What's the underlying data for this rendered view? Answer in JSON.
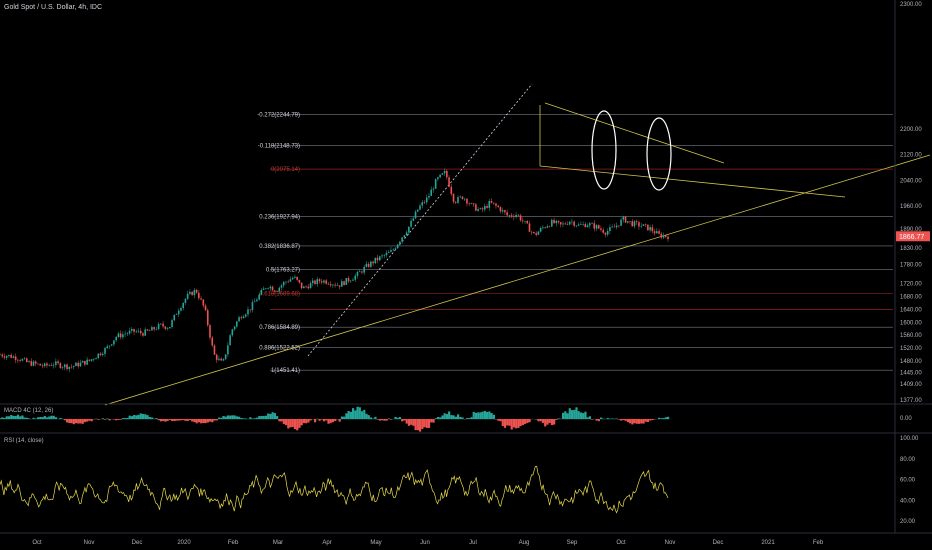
{
  "title": "Gold Spot / U.S. Dollar, 4h, IDC",
  "last_price": "1866.77",
  "price_badge_color": "#ef5350",
  "candle_up_color": "#26a69a",
  "candle_down_color": "#ef5350",
  "trendline_color": "#d4c44a",
  "rsi_color": "#e7d94a",
  "fib_line_color": "#787b86",
  "fib_red_color": "#b22833",
  "macd": {
    "label": "MACD 4C (12, 26)",
    "zero_label": "0.00"
  },
  "rsi": {
    "label": "RSI (14, close)",
    "ticks": [
      "100.00",
      "80.00",
      "60.00",
      "40.00",
      "20.00"
    ]
  },
  "price_axis": {
    "ticks": [
      "2300.00",
      "2200.00",
      "2120.00",
      "2040.00",
      "1960.00",
      "1890.00",
      "1830.00",
      "1780.00",
      "1720.00",
      "1680.00",
      "1640.00",
      "1600.00",
      "1560.00",
      "1520.00",
      "1480.00",
      "1445.00",
      "1409.00",
      "1377.00"
    ]
  },
  "time_axis": {
    "ticks": [
      "Oct",
      "Nov",
      "Dec",
      "2020",
      "Feb",
      "Mar",
      "Apr",
      "May",
      "Jun",
      "Jul",
      "Aug",
      "Sep",
      "Oct",
      "Nov",
      "Dec",
      "2021",
      "Feb"
    ]
  },
  "chart_data": {
    "type": "line",
    "series": [
      {
        "values": [
          1500,
          1496,
          1490,
          1476,
          1470,
          1464,
          1472,
          1466,
          1462,
          1472,
          1480,
          1500,
          1520,
          1555,
          1565,
          1572,
          1566,
          1576,
          1590,
          1585,
          1640,
          1680,
          1700,
          1640,
          1500,
          1470,
          1575,
          1620,
          1640,
          1680,
          1715,
          1700,
          1725,
          1740,
          1705,
          1720,
          1730,
          1725,
          1715,
          1730,
          1745,
          1770,
          1790,
          1805,
          1820,
          1860,
          1900,
          1955,
          1985,
          2040,
          2065,
          1975,
          1990,
          1960,
          1945,
          1970,
          1955,
          1930,
          1935,
          1905,
          1870,
          1895,
          1910,
          1900,
          1915,
          1900,
          1905,
          1895,
          1880,
          1895,
          1920,
          1906,
          1900,
          1890,
          1870,
          1866.77
        ]
      }
    ],
    "fibonacci": [
      {
        "label": "-0.272(2244.79)",
        "price": 2244.79,
        "color": "#787b86"
      },
      {
        "label": "-0.118(2148.73)",
        "price": 2148.73,
        "color": "#787b86"
      },
      {
        "label": "0(2075.14)",
        "price": 2075.14,
        "color": "#b22833"
      },
      {
        "label": "0.236(1927.94)",
        "price": 1927.94,
        "color": "#787b86"
      },
      {
        "label": "0.382(1836.87)",
        "price": 1836.87,
        "color": "#787b86"
      },
      {
        "label": "0.5(1763.27)",
        "price": 1763.27,
        "color": "#787b86"
      },
      {
        "label": "0.618(1689.68)",
        "price": 1689.68,
        "color": "#b22833"
      },
      {
        "label": "",
        "price": 1640,
        "color": "#b22833"
      },
      {
        "label": "0.786(1584.89)",
        "price": 1584.89,
        "color": "#787b86"
      },
      {
        "label": "0.886(1522.52)",
        "price": 1522.52,
        "color": "#787b86"
      },
      {
        "label": "1(1451.41)",
        "price": 1451.41,
        "color": "#787b86"
      }
    ],
    "ylim": [
      1377,
      2300
    ],
    "log_scale": false,
    "grid": false
  }
}
